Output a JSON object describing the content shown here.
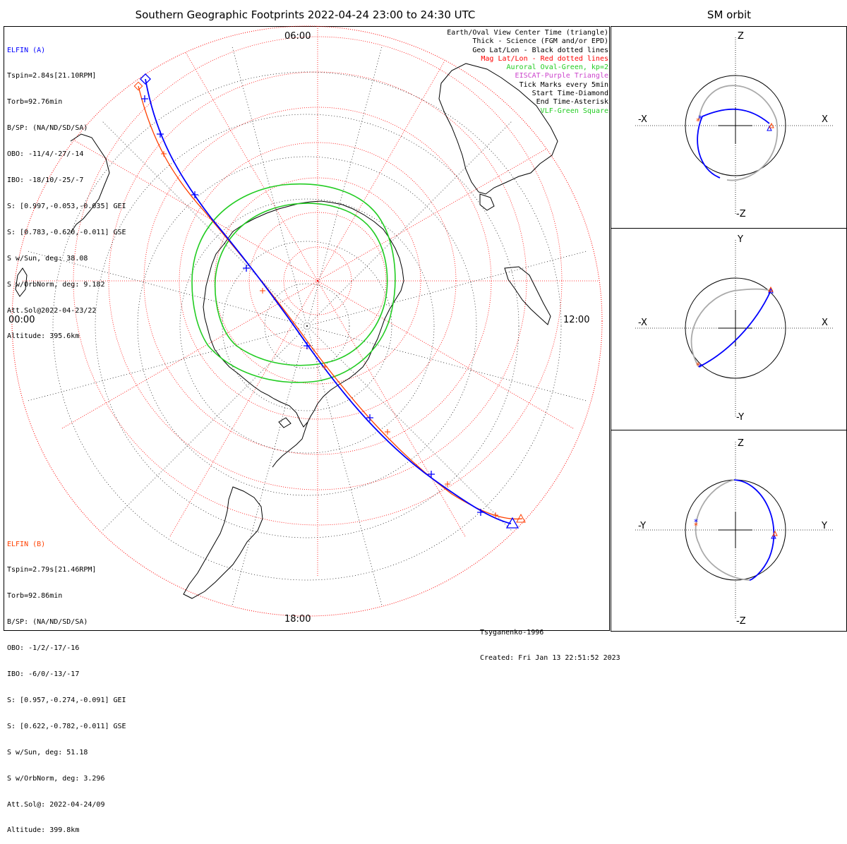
{
  "title": "Southern Geographic Footprints 2022-04-24 23:00 to 24:30 UTC",
  "sm_title": "SM orbit",
  "colors": {
    "a": "#0000ff",
    "b": "#ff4000",
    "oval": "#22cc22",
    "grid_mag": "#ff0000",
    "grid_geo": "#000000",
    "eiscat": "#cc44cc",
    "vlf": "#22cc22",
    "orbit_gray": "#aaaaaa"
  },
  "elfin_a": {
    "name": "ELFIN (A)",
    "lines": [
      "Tspin=2.84s[21.10RPM]",
      "Torb=92.76min",
      "B/SP: (NA/ND/SD/SA)",
      "OBO: -11/4/-27/-14",
      "IBO: -18/10/-25/-7",
      "S: [0.997,-0.053,-0.035] GEI",
      "S: [0.783,-0.620,-0.011] GSE",
      "S w/Sun, deg: 38.08",
      "S w/OrbNorm, deg: 9.182",
      "Att.Sol@2022-04-23/22",
      "Altitude: 395.6km"
    ]
  },
  "elfin_b": {
    "name": "ELFIN (B)",
    "lines": [
      "Tspin=2.79s[21.46RPM]",
      "Torb=92.86min",
      "B/SP: (NA/ND/SD/SA)",
      "OBO: -1/2/-17/-16",
      "IBO: -6/0/-13/-17",
      "S: [0.957,-0.274,-0.091] GEI",
      "S: [0.622,-0.782,-0.011] GSE",
      "S w/Sun, deg: 51.18",
      "S w/OrbNorm, deg: 3.296",
      "Att.Sol@: 2022-04-24/09",
      "Altitude: 399.8km"
    ]
  },
  "legend": [
    {
      "text": "Earth/Oval View Center Time (triangle)",
      "color": "#000000"
    },
    {
      "text": "Thick - Science (FGM and/or EPD)",
      "color": "#000000"
    },
    {
      "text": "Geo Lat/Lon - Black dotted lines",
      "color": "#000000"
    },
    {
      "text": "Mag Lat/Lon - Red dotted lines",
      "color": "#ff0000"
    },
    {
      "text": "Auroral Oval-Green, kp=2",
      "color": "#22cc22"
    },
    {
      "text": "EISCAT-Purple Triangle",
      "color": "#cc44cc"
    },
    {
      "text": "Tick Marks every 5min",
      "color": "#000000"
    },
    {
      "text": "Start Time-Diamond",
      "color": "#000000"
    },
    {
      "text": "End Time-Asterisk",
      "color": "#000000"
    },
    {
      "text": "VLF-Green Square",
      "color": "#22cc22"
    }
  ],
  "mlt_labels": {
    "top": "06:00",
    "left": "00:00",
    "right": "12:00",
    "bottom": "18:00"
  },
  "credits": [
    "Tsyganenko-1996",
    "Created: Fri Jan 13 22:51:52 2023"
  ],
  "sm_panels": [
    {
      "up": "Z",
      "down": "-Z",
      "left": "-X",
      "right": "X"
    },
    {
      "up": "Y",
      "down": "-Y",
      "left": "-X",
      "right": "X"
    },
    {
      "up": "Z",
      "down": "-Z",
      "left": "-Y",
      "right": "Y"
    }
  ]
}
